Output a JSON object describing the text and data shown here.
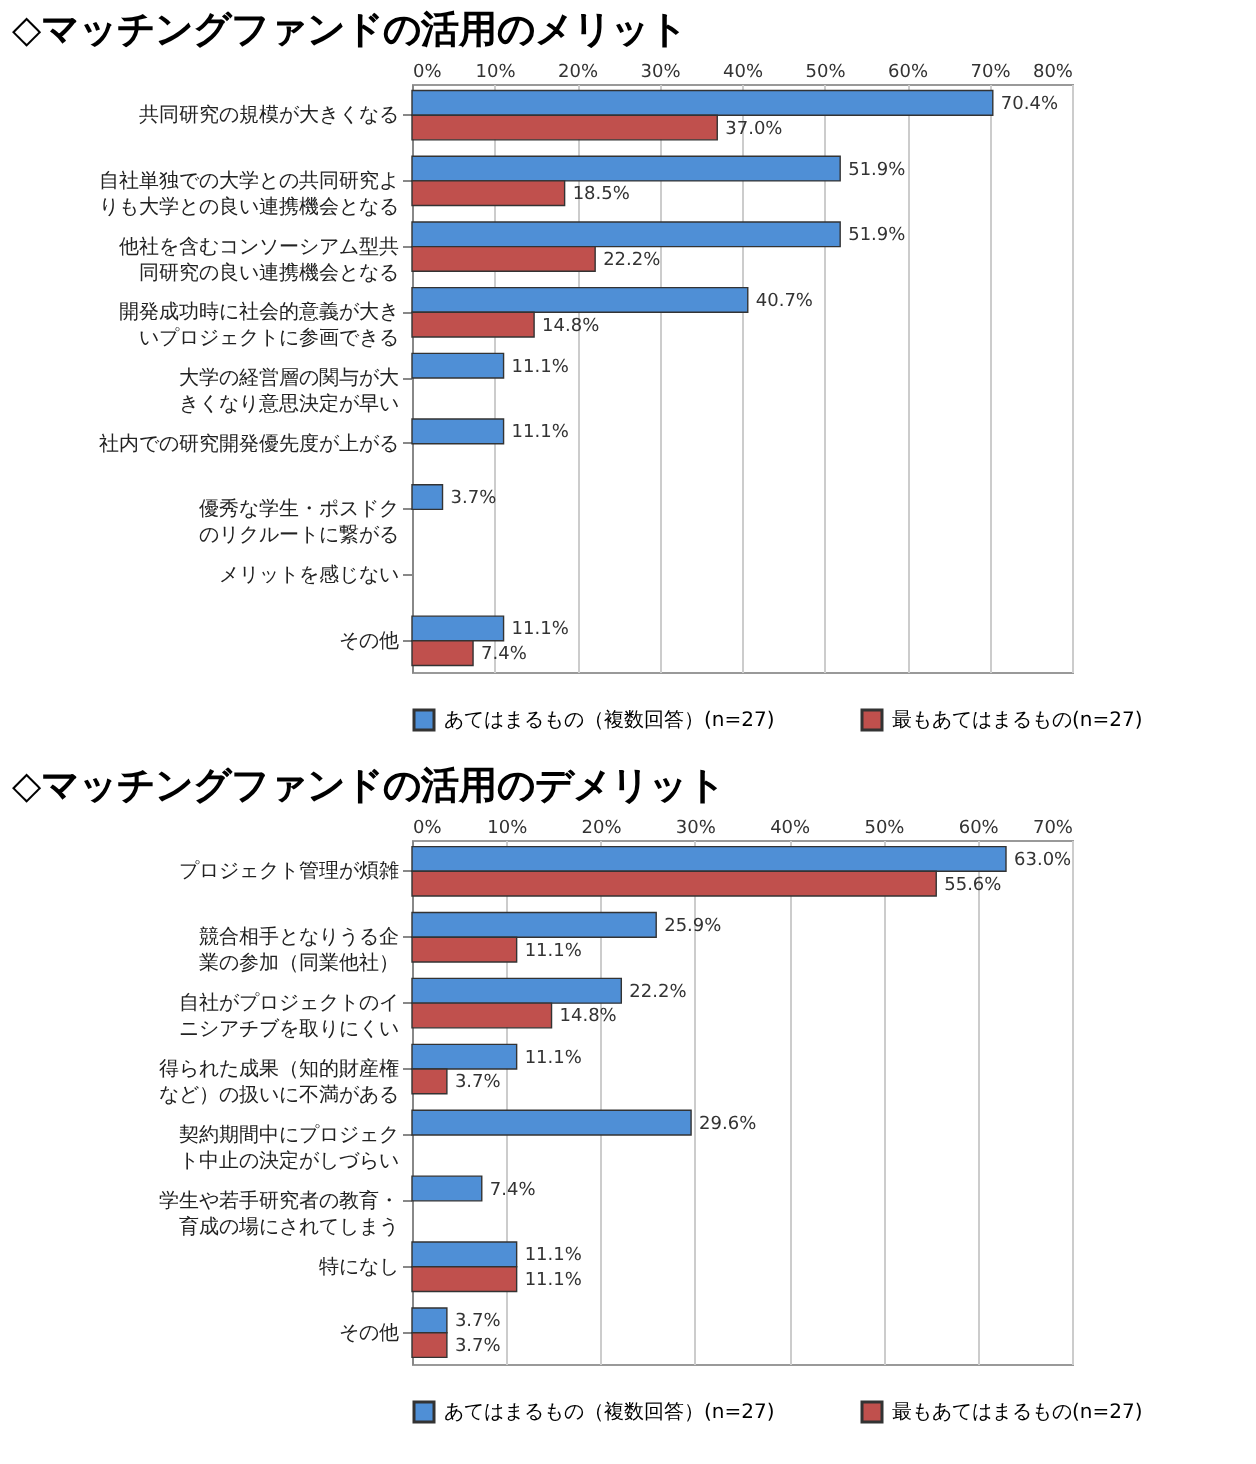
{
  "chart_data": [
    {
      "type": "bar",
      "orientation": "horizontal",
      "title": "◇マッチングファンドの活用のメリット",
      "categories": [
        "共同研究の規模が大きくなる",
        "自社単独での大学との共同研究よりも大学との良い連携機会となる",
        "他社を含むコンソーシアム型共同研究の良い連携機会となる",
        "開発成功時に社会的意義が大きいプロジェクトに参画できる",
        "大学の経営層の関与が大きくなり意思決定が早い",
        "社内での研究開発優先度が上がる",
        "優秀な学生・ポスドクのリクルートに繋がる",
        "メリットを感じない",
        "その他"
      ],
      "series": [
        {
          "name": "あてはまるもの（複数回答）(n=27)",
          "color": "#4f8fd6",
          "values": [
            70.4,
            51.9,
            51.9,
            40.7,
            11.1,
            11.1,
            3.7,
            null,
            11.1
          ],
          "value_labels": [
            "70.4%",
            "51.9%",
            "51.9%",
            "40.7%",
            "11.1%",
            "11.1%",
            "3.7%",
            null,
            "11.1%"
          ]
        },
        {
          "name": "最もあてはまるもの(n=27)",
          "color": "#c0504d",
          "values": [
            37.0,
            18.5,
            22.2,
            14.8,
            null,
            null,
            null,
            null,
            7.4
          ],
          "value_labels": [
            "37.0%",
            "18.5%",
            "22.2%",
            "14.8%",
            null,
            null,
            null,
            null,
            "7.4%"
          ]
        }
      ],
      "xlim": [
        0,
        80
      ],
      "xticks": [
        {
          "value": 0,
          "label": "0%"
        },
        {
          "value": 10,
          "label": "10%"
        },
        {
          "value": 20,
          "label": "20%"
        },
        {
          "value": 30,
          "label": "30%"
        },
        {
          "value": 40,
          "label": "40%"
        },
        {
          "value": 50,
          "label": "50%"
        },
        {
          "value": 60,
          "label": "60%"
        },
        {
          "value": 70,
          "label": "70%"
        },
        {
          "value": 80,
          "label": "80%"
        }
      ],
      "grid": "x",
      "legend": "bottom"
    },
    {
      "type": "bar",
      "orientation": "horizontal",
      "title": "◇マッチングファンドの活用のデメリット",
      "categories": [
        "プロジェクト管理が煩雑",
        "競合相手となりうる企業の参加（同業他社）",
        "自社がプロジェクトのイニシアチブを取りにくい",
        "得られた成果（知的財産権など）の扱いに不満がある",
        "契約期間中にプロジェクト中止の決定がしづらい",
        "学生や若手研究者の教育・育成の場にされてしまう",
        "特になし",
        "その他"
      ],
      "series": [
        {
          "name": "あてはまるもの（複数回答）(n=27)",
          "color": "#4f8fd6",
          "values": [
            63.0,
            25.9,
            22.2,
            11.1,
            29.6,
            7.4,
            11.1,
            3.7
          ],
          "value_labels": [
            "63.0%",
            "25.9%",
            "22.2%",
            "11.1%",
            "29.6%",
            "7.4%",
            "11.1%",
            "3.7%"
          ]
        },
        {
          "name": "最もあてはまるもの(n=27)",
          "color": "#c0504d",
          "values": [
            55.6,
            11.1,
            14.8,
            3.7,
            null,
            null,
            11.1,
            3.7
          ],
          "value_labels": [
            "55.6%",
            "11.1%",
            "14.8%",
            "3.7%",
            null,
            null,
            "11.1%",
            "3.7%"
          ]
        }
      ],
      "xlim": [
        0,
        70
      ],
      "xticks": [
        {
          "value": 0,
          "label": "0%"
        },
        {
          "value": 10,
          "label": "10%"
        },
        {
          "value": 20,
          "label": "20%"
        },
        {
          "value": 30,
          "label": "30%"
        },
        {
          "value": 40,
          "label": "40%"
        },
        {
          "value": 50,
          "label": "50%"
        },
        {
          "value": 60,
          "label": "60%"
        },
        {
          "value": 70,
          "label": "70%"
        }
      ],
      "grid": "x",
      "legend": "bottom"
    }
  ]
}
